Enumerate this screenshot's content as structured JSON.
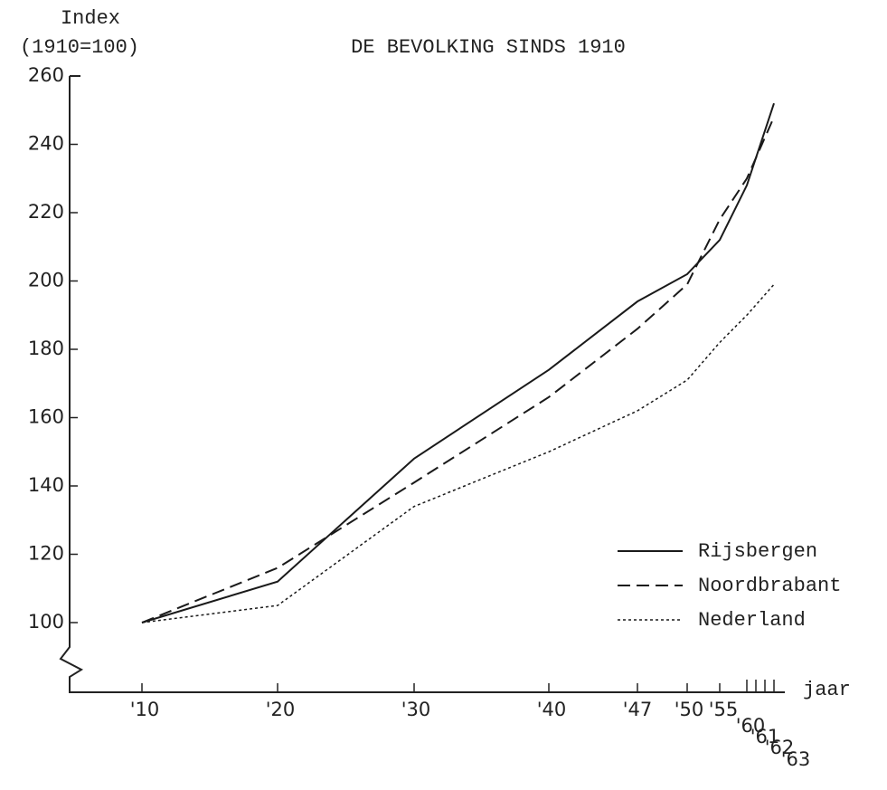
{
  "chart_data": {
    "type": "line",
    "title": "DE BEVOLKING SINDS 1910",
    "y_label": "Index",
    "y_sublabel": "(1910=100)",
    "x_label": "jaar",
    "categories": [
      "'10",
      "'20",
      "'30",
      "'40",
      "'47",
      "'50",
      "'55",
      "'60",
      "'61",
      "'62",
      "'63"
    ],
    "series": [
      {
        "name": "Rijsbergen",
        "color": "#1a1a1a",
        "dash": "solid",
        "values": [
          100,
          112,
          148,
          174,
          194,
          202,
          212,
          228,
          236,
          244,
          252
        ]
      },
      {
        "name": "Noordbrabant",
        "color": "#1a1a1a",
        "dash": "dashed",
        "values": [
          100,
          116,
          141,
          166,
          186,
          199,
          218,
          230,
          236,
          242,
          248
        ]
      },
      {
        "name": "Nederland",
        "color": "#1a1a1a",
        "dash": "dotted",
        "values": [
          100,
          105,
          134,
          150,
          162,
          171,
          182,
          190,
          193,
          196,
          199
        ]
      }
    ],
    "ylim": [
      100,
      260
    ],
    "yticks": [
      100,
      120,
      140,
      160,
      180,
      200,
      220,
      240,
      260
    ],
    "axis_break": true,
    "legend": "lower right"
  }
}
